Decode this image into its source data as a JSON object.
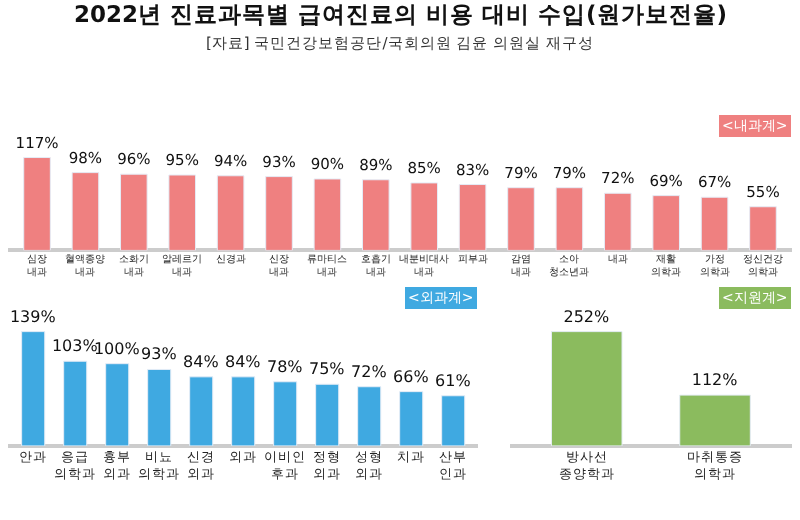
{
  "chart_data": [
    {
      "type": "bar",
      "title": "2022년 진료과목별 급여진료의 비용 대비 수입(원가보전율)",
      "subtitle": "[자료] 국민건강보험공단/국회의원 김윤 의원실 재구성",
      "annotations": [
        "<내과계>"
      ],
      "categories": [
        "심장\n내과",
        "혈액종양\n내과",
        "소화기\n내과",
        "알레르기\n내과",
        "신경과",
        "신장\n내과",
        "류마티스\n내과",
        "호흡기\n내과",
        "내분비대사\n내과",
        "피부과",
        "감염\n내과",
        "소아\n청소년과",
        "내과",
        "재활\n의학과",
        "가정\n의학과",
        "정신건강\n의학과"
      ],
      "values": [
        117,
        98,
        96,
        95,
        94,
        93,
        90,
        89,
        85,
        83,
        79,
        79,
        72,
        69,
        67,
        55
      ],
      "color": "#ef8080",
      "value_labels": [
        "117%",
        "98%",
        "96%",
        "95%",
        "94%",
        "93%",
        "90%",
        "89%",
        "85%",
        "83%",
        "79%",
        "79%",
        "72%",
        "69%",
        "67%",
        "55%"
      ],
      "tick_labels": "x"
    },
    {
      "type": "bar",
      "annotations": [
        "<외과계>"
      ],
      "categories": [
        "안과",
        "응급\n의학과",
        "흉부\n외과",
        "비뇨\n의학과",
        "신경\n외과",
        "외과",
        "이비인\n후과",
        "정형\n외과",
        "성형\n외과",
        "치과",
        "산부\n인과"
      ],
      "values": [
        139,
        103,
        100,
        93,
        84,
        84,
        78,
        75,
        72,
        66,
        61
      ],
      "color": "#3fa9e1",
      "value_labels": [
        "139%",
        "103%",
        "100%",
        "93%",
        "84%",
        "84%",
        "78%",
        "75%",
        "72%",
        "66%",
        "61%"
      ],
      "tick_labels": "x"
    },
    {
      "type": "bar",
      "annotations": [
        "<지원계>"
      ],
      "categories": [
        "방사선\n종양학과",
        "마취통증\n의학과"
      ],
      "values": [
        252,
        112
      ],
      "color": "#8bbb5e",
      "value_labels": [
        "252%",
        "112%"
      ],
      "tick_labels": "x"
    }
  ]
}
